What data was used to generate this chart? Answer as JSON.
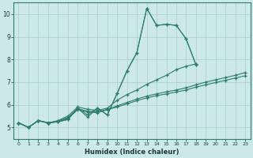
{
  "xlabel": "Humidex (Indice chaleur)",
  "ylabel": "",
  "bg_color": "#cce8e8",
  "line_color": "#2d7d6e",
  "grid_color": "#aacccc",
  "xlim": [
    -0.5,
    23.5
  ],
  "ylim": [
    4.5,
    10.5
  ],
  "xticks": [
    0,
    1,
    2,
    3,
    4,
    5,
    6,
    7,
    8,
    9,
    10,
    11,
    12,
    13,
    14,
    15,
    16,
    17,
    18,
    19,
    20,
    21,
    22,
    23
  ],
  "yticks": [
    5,
    6,
    7,
    8,
    9,
    10
  ],
  "series": [
    {
      "x": [
        0,
        1,
        2,
        3,
        4,
        5,
        6,
        7,
        8,
        9,
        10,
        11,
        12,
        13,
        14,
        15,
        16,
        17,
        18
      ],
      "y": [
        5.2,
        5.0,
        5.3,
        5.2,
        5.25,
        5.35,
        5.85,
        5.45,
        5.85,
        5.55,
        6.5,
        7.5,
        8.3,
        10.25,
        9.5,
        9.55,
        9.5,
        8.9,
        7.75
      ]
    },
    {
      "x": [
        0,
        1,
        2,
        3,
        4,
        5,
        6,
        7,
        8,
        9,
        10,
        11,
        12,
        13,
        14,
        15,
        16,
        17,
        18
      ],
      "y": [
        5.2,
        5.0,
        5.3,
        5.2,
        5.25,
        5.35,
        5.85,
        5.55,
        5.85,
        5.55,
        6.5,
        7.5,
        8.3,
        10.25,
        9.5,
        9.55,
        9.5,
        8.9,
        7.75
      ]
    },
    {
      "x": [
        0,
        1,
        2,
        3,
        4,
        5,
        6,
        7,
        8,
        9,
        10,
        11,
        12,
        13,
        14,
        15,
        16,
        17,
        18
      ],
      "y": [
        5.2,
        5.0,
        5.3,
        5.2,
        5.3,
        5.5,
        5.9,
        5.8,
        5.75,
        5.85,
        6.2,
        6.45,
        6.65,
        6.9,
        7.1,
        7.3,
        7.55,
        7.7,
        7.8
      ]
    },
    {
      "x": [
        0,
        1,
        2,
        3,
        4,
        5,
        6,
        7,
        8,
        9,
        10,
        11,
        12,
        13,
        14,
        15,
        16,
        17,
        18,
        19,
        20,
        21,
        22,
        23
      ],
      "y": [
        5.2,
        5.0,
        5.3,
        5.2,
        5.28,
        5.44,
        5.82,
        5.72,
        5.68,
        5.8,
        5.95,
        6.1,
        6.25,
        6.38,
        6.48,
        6.57,
        6.65,
        6.75,
        6.88,
        7.0,
        7.1,
        7.2,
        7.3,
        7.42
      ]
    },
    {
      "x": [
        0,
        1,
        2,
        3,
        4,
        5,
        6,
        7,
        8,
        9,
        10,
        11,
        12,
        13,
        14,
        15,
        16,
        17,
        18,
        19,
        20,
        21,
        22,
        23
      ],
      "y": [
        5.2,
        5.0,
        5.3,
        5.2,
        5.25,
        5.4,
        5.78,
        5.68,
        5.65,
        5.78,
        5.9,
        6.04,
        6.18,
        6.3,
        6.4,
        6.48,
        6.56,
        6.65,
        6.78,
        6.88,
        6.98,
        7.08,
        7.18,
        7.28
      ]
    }
  ]
}
